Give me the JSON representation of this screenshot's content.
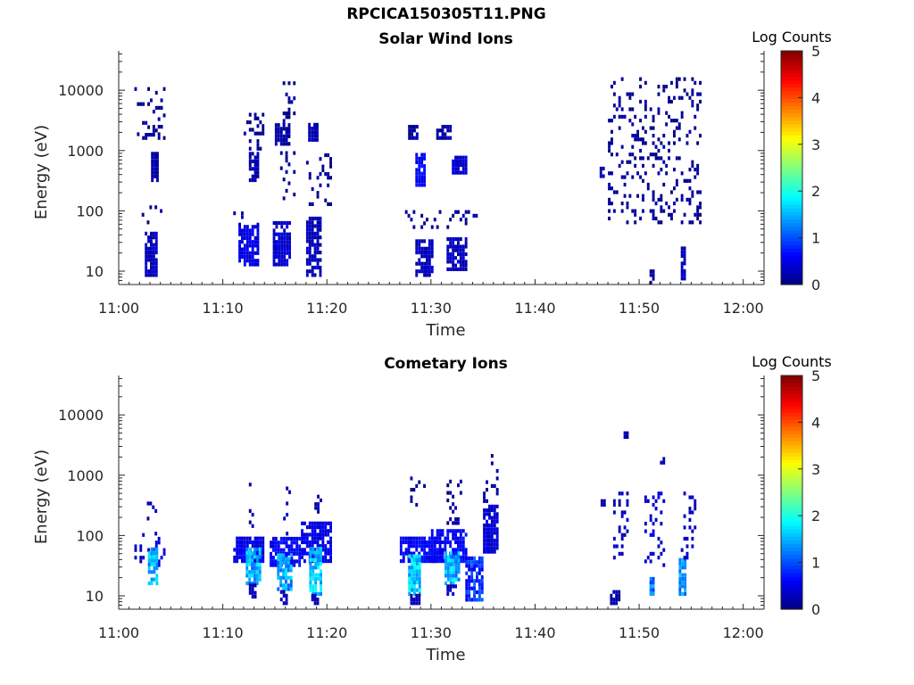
{
  "figure": {
    "title": "RPCICA150305T11.PNG"
  },
  "chart_data": [
    {
      "type": "heatmap",
      "title": "Solar Wind Ions",
      "xlabel": "Time",
      "ylabel": "Energy (eV)",
      "x_ticks": [
        "11:00",
        "11:10",
        "11:20",
        "11:30",
        "11:40",
        "11:50",
        "12:00"
      ],
      "x_range_minutes": [
        0,
        62
      ],
      "y_scale": "log",
      "y_ticks": [
        10,
        100,
        1000,
        10000
      ],
      "y_tick_labels": [
        "10",
        "100",
        "1000",
        "10000"
      ],
      "y_range": [
        6,
        45000
      ],
      "colorbar": {
        "label": "Log Counts",
        "range": [
          0,
          5
        ],
        "ticks": [
          "0",
          "1",
          "2",
          "3",
          "4",
          "5"
        ],
        "colormap": "jet"
      },
      "clusters": [
        {
          "t_start": 2.5,
          "t_end": 3.6,
          "e_low": 8,
          "e_high": 40,
          "level": 0.3
        },
        {
          "t_start": 2.2,
          "t_end": 4.2,
          "e_low": 60,
          "e_high": 120,
          "level": 0.1,
          "sparse": true
        },
        {
          "t_start": 3.1,
          "t_end": 3.8,
          "e_low": 300,
          "e_high": 900,
          "level": 0.2
        },
        {
          "t_start": 2.5,
          "t_end": 3.5,
          "e_low": 1700,
          "e_high": 2500,
          "level": 0.2
        },
        {
          "t_start": 1.5,
          "t_end": 4.5,
          "e_low": 1500,
          "e_high": 10000,
          "level": 0.1,
          "sparse": true
        },
        {
          "t_start": 11.5,
          "t_end": 13.5,
          "e_low": 12,
          "e_high": 55,
          "level": 0.5
        },
        {
          "t_start": 11.0,
          "t_end": 13.5,
          "e_low": 55,
          "e_high": 90,
          "level": 0.2,
          "sparse": true
        },
        {
          "t_start": 12.5,
          "t_end": 13.5,
          "e_low": 300,
          "e_high": 900,
          "level": 0.2
        },
        {
          "t_start": 12.0,
          "t_end": 14.0,
          "e_low": 1000,
          "e_high": 4000,
          "level": 0.1,
          "sparse": true
        },
        {
          "t_start": 14.8,
          "t_end": 16.4,
          "e_low": 12,
          "e_high": 60,
          "level": 0.4
        },
        {
          "t_start": 15.0,
          "t_end": 16.5,
          "e_low": 1200,
          "e_high": 2500,
          "level": 0.2
        },
        {
          "t_start": 15.5,
          "t_end": 17.0,
          "e_low": 150,
          "e_high": 1000,
          "level": 0.1,
          "sparse": true
        },
        {
          "t_start": 15.5,
          "t_end": 17.0,
          "e_low": 2500,
          "e_high": 13000,
          "level": 0.1,
          "sparse": true
        },
        {
          "t_start": 18.0,
          "t_end": 19.5,
          "e_low": 8,
          "e_high": 70,
          "level": 0.3
        },
        {
          "t_start": 18.2,
          "t_end": 19.0,
          "e_low": 1400,
          "e_high": 2500,
          "level": 0.2
        },
        {
          "t_start": 18.0,
          "t_end": 20.5,
          "e_low": 120,
          "e_high": 1000,
          "level": 0.1,
          "sparse": true
        },
        {
          "t_start": 28.5,
          "t_end": 30.2,
          "e_low": 8,
          "e_high": 30,
          "level": 0.3
        },
        {
          "t_start": 28.5,
          "t_end": 29.5,
          "e_low": 250,
          "e_high": 800,
          "level": 0.6
        },
        {
          "t_start": 27.8,
          "t_end": 28.6,
          "e_low": 1500,
          "e_high": 2500,
          "level": 0.2
        },
        {
          "t_start": 31.5,
          "t_end": 33.3,
          "e_low": 10,
          "e_high": 35,
          "level": 0.3
        },
        {
          "t_start": 30.5,
          "t_end": 31.8,
          "e_low": 1500,
          "e_high": 2500,
          "level": 0.2
        },
        {
          "t_start": 32.0,
          "t_end": 33.3,
          "e_low": 400,
          "e_high": 800,
          "level": 0.4
        },
        {
          "t_start": 27.5,
          "t_end": 34.5,
          "e_low": 50,
          "e_high": 100,
          "level": 0.1,
          "sparse": true
        },
        {
          "t_start": 46.2,
          "t_end": 46.6,
          "e_low": 350,
          "e_high": 500,
          "level": 0.2
        },
        {
          "t_start": 51.0,
          "t_end": 51.4,
          "e_low": 6,
          "e_high": 10,
          "level": 0.1
        },
        {
          "t_start": 54.0,
          "t_end": 54.5,
          "e_low": 7,
          "e_high": 25,
          "level": 0.3
        },
        {
          "t_start": 47.0,
          "t_end": 56.0,
          "e_low": 60,
          "e_high": 15000,
          "level": 0.1,
          "sparse": true
        }
      ]
    },
    {
      "type": "heatmap",
      "title": "Cometary Ions",
      "xlabel": "Time",
      "ylabel": "Energy (eV)",
      "x_ticks": [
        "11:00",
        "11:10",
        "11:20",
        "11:30",
        "11:40",
        "11:50",
        "12:00"
      ],
      "x_range_minutes": [
        0,
        62
      ],
      "y_scale": "log",
      "y_ticks": [
        10,
        100,
        1000,
        10000
      ],
      "y_tick_labels": [
        "10",
        "100",
        "1000",
        "10000"
      ],
      "y_range": [
        6,
        45000
      ],
      "colorbar": {
        "label": "Log Counts",
        "range": [
          0,
          5
        ],
        "ticks": [
          "0",
          "1",
          "2",
          "3",
          "4",
          "5"
        ],
        "colormap": "jet"
      },
      "clusters": [
        {
          "t_start": 1.5,
          "t_end": 4.5,
          "e_low": 30,
          "e_high": 100,
          "level": 0.4,
          "sparse": true
        },
        {
          "t_start": 2.8,
          "t_end": 3.8,
          "e_low": 15,
          "e_high": 60,
          "level": 1.5
        },
        {
          "t_start": 2.7,
          "t_end": 3.6,
          "e_low": 100,
          "e_high": 400,
          "level": 0.3,
          "sparse": true
        },
        {
          "t_start": 11.0,
          "t_end": 14.0,
          "e_low": 35,
          "e_high": 90,
          "level": 0.5
        },
        {
          "t_start": 12.2,
          "t_end": 13.5,
          "e_low": 15,
          "e_high": 60,
          "level": 1.5
        },
        {
          "t_start": 12.5,
          "t_end": 13.2,
          "e_low": 9,
          "e_high": 16,
          "level": 0.3
        },
        {
          "t_start": 12.5,
          "t_end": 13.0,
          "e_low": 100,
          "e_high": 800,
          "level": 0.2,
          "sparse": true
        },
        {
          "t_start": 14.5,
          "t_end": 17.5,
          "e_low": 30,
          "e_high": 90,
          "level": 0.6
        },
        {
          "t_start": 15.2,
          "t_end": 16.5,
          "e_low": 12,
          "e_high": 50,
          "level": 1.4
        },
        {
          "t_start": 15.5,
          "t_end": 16.2,
          "e_low": 7,
          "e_high": 12,
          "level": 0.3
        },
        {
          "t_start": 15.8,
          "t_end": 16.4,
          "e_low": 100,
          "e_high": 600,
          "level": 0.3,
          "sparse": true
        },
        {
          "t_start": 17.5,
          "t_end": 20.5,
          "e_low": 35,
          "e_high": 150,
          "level": 0.5
        },
        {
          "t_start": 18.3,
          "t_end": 19.5,
          "e_low": 10,
          "e_high": 60,
          "level": 1.6
        },
        {
          "t_start": 18.5,
          "t_end": 19.2,
          "e_low": 7,
          "e_high": 10,
          "level": 0.3
        },
        {
          "t_start": 18.8,
          "t_end": 19.4,
          "e_low": 150,
          "e_high": 800,
          "level": 0.2,
          "sparse": true
        },
        {
          "t_start": 27.0,
          "t_end": 30.5,
          "e_low": 35,
          "e_high": 90,
          "level": 0.6
        },
        {
          "t_start": 27.8,
          "t_end": 29.0,
          "e_low": 10,
          "e_high": 45,
          "level": 1.6
        },
        {
          "t_start": 28.0,
          "t_end": 29.0,
          "e_low": 7,
          "e_high": 10,
          "level": 0.3
        },
        {
          "t_start": 28.0,
          "t_end": 29.5,
          "e_low": 300,
          "e_high": 900,
          "level": 0.1,
          "sparse": true
        },
        {
          "t_start": 30.0,
          "t_end": 33.5,
          "e_low": 35,
          "e_high": 120,
          "level": 0.6
        },
        {
          "t_start": 31.3,
          "t_end": 32.6,
          "e_low": 15,
          "e_high": 50,
          "level": 1.5
        },
        {
          "t_start": 31.5,
          "t_end": 32.5,
          "e_low": 10,
          "e_high": 15,
          "level": 0.3
        },
        {
          "t_start": 31.5,
          "t_end": 32.8,
          "e_low": 150,
          "e_high": 800,
          "level": 0.1,
          "sparse": true
        },
        {
          "t_start": 33.3,
          "t_end": 35.0,
          "e_low": 8,
          "e_high": 40,
          "level": 0.8
        },
        {
          "t_start": 35.0,
          "t_end": 36.4,
          "e_low": 50,
          "e_high": 300,
          "level": 0.4
        },
        {
          "t_start": 35.0,
          "t_end": 36.5,
          "e_low": 300,
          "e_high": 2500,
          "level": 0.1,
          "sparse": true
        },
        {
          "t_start": 46.3,
          "t_end": 46.6,
          "e_low": 300,
          "e_high": 400,
          "level": 0.2
        },
        {
          "t_start": 47.2,
          "t_end": 48.0,
          "e_low": 7,
          "e_high": 12,
          "level": 0.2
        },
        {
          "t_start": 47.5,
          "t_end": 49.0,
          "e_low": 40,
          "e_high": 500,
          "level": 0.3,
          "sparse": true
        },
        {
          "t_start": 48.5,
          "t_end": 48.8,
          "e_low": 4000,
          "e_high": 5000,
          "level": 0.2
        },
        {
          "t_start": 50.5,
          "t_end": 52.5,
          "e_low": 30,
          "e_high": 500,
          "level": 0.4,
          "sparse": true
        },
        {
          "t_start": 51.0,
          "t_end": 51.4,
          "e_low": 10,
          "e_high": 20,
          "level": 1.2
        },
        {
          "t_start": 52.0,
          "t_end": 52.3,
          "e_low": 1500,
          "e_high": 2000,
          "level": 0.2
        },
        {
          "t_start": 53.8,
          "t_end": 54.4,
          "e_low": 10,
          "e_high": 40,
          "level": 1.4
        },
        {
          "t_start": 54.0,
          "t_end": 55.5,
          "e_low": 40,
          "e_high": 600,
          "level": 0.3,
          "sparse": true
        }
      ]
    }
  ]
}
